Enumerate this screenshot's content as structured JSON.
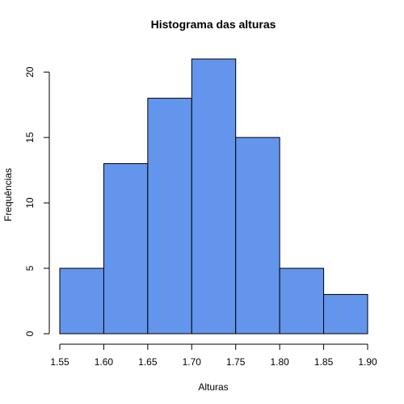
{
  "chart_data": {
    "type": "bar",
    "title": "Histograma das alturas",
    "xlabel": "Alturas",
    "ylabel": "Frequências",
    "bins": [
      {
        "from": 1.55,
        "to": 1.6,
        "count": 5
      },
      {
        "from": 1.6,
        "to": 1.65,
        "count": 13
      },
      {
        "from": 1.65,
        "to": 1.7,
        "count": 18
      },
      {
        "from": 1.7,
        "to": 1.75,
        "count": 21
      },
      {
        "from": 1.75,
        "to": 1.8,
        "count": 15
      },
      {
        "from": 1.8,
        "to": 1.85,
        "count": 5
      },
      {
        "from": 1.85,
        "to": 1.9,
        "count": 3
      }
    ],
    "xlim": [
      1.55,
      1.9
    ],
    "ylim": [
      0,
      21
    ],
    "x_ticks": [
      "1.55",
      "1.60",
      "1.65",
      "1.70",
      "1.75",
      "1.80",
      "1.85",
      "1.90"
    ],
    "y_ticks": [
      "0",
      "5",
      "10",
      "15",
      "20"
    ],
    "bar_color": "#6495ED",
    "bar_edge_color": "#000000",
    "grid": false
  }
}
